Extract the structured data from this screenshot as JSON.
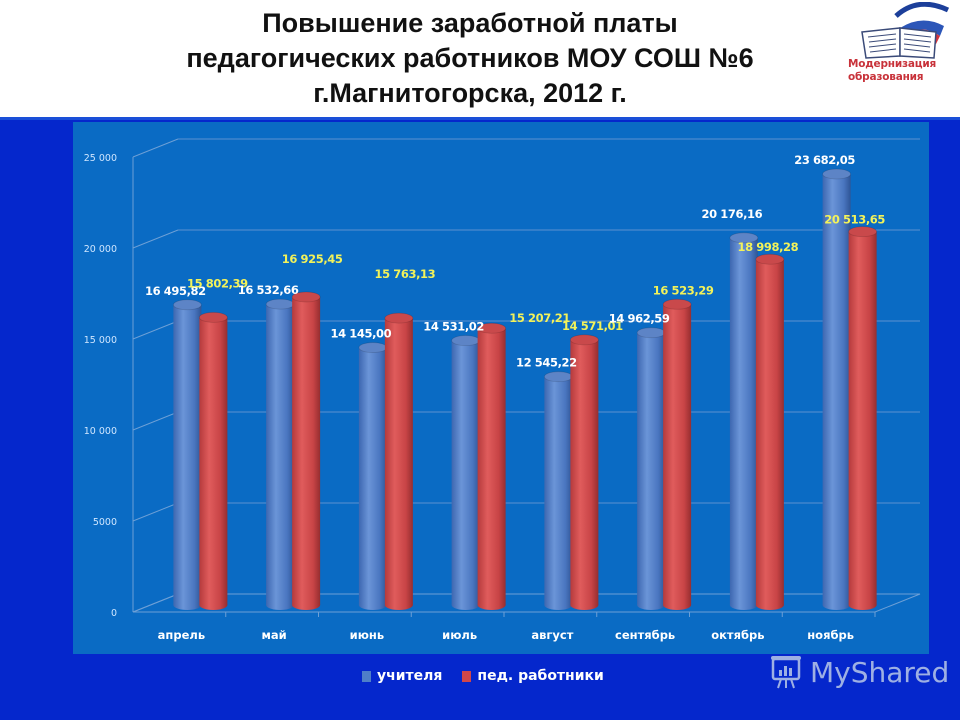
{
  "header": {
    "title_lines": [
      "Повышение заработной платы",
      "педагогических работников МОУ СОШ №6",
      "г.Магнитогорска, 2012 г."
    ],
    "logo_text_lines": [
      "Модернизация",
      "образования"
    ]
  },
  "legend": {
    "items": [
      {
        "label": "учителя",
        "color": "#4f7fc8"
      },
      {
        "label": "пед. работники",
        "color": "#d0474a"
      }
    ]
  },
  "watermark": {
    "text": "MyShared"
  },
  "colors": {
    "slide_background": "#0527cc",
    "plot_panel": "#0a6bc4",
    "series_teachers": "#4f7fc8",
    "series_ped_workers": "#d0474a",
    "label_teachers": "#ffffff",
    "label_ped_workers": "#f2f25a"
  },
  "chart_data": {
    "type": "bar",
    "title": "Повышение заработной платы педагогических работников МОУ СОШ №6 г.Магнитогорска, 2012 г.",
    "xlabel": "",
    "ylabel": "",
    "ylim": [
      0,
      25000
    ],
    "yticks": [
      0,
      5000,
      10000,
      15000,
      20000,
      25000
    ],
    "ytick_labels": [
      "0",
      "5000",
      "10 000",
      "15 000",
      "20 000",
      "25 000"
    ],
    "grid": true,
    "legend_position": "bottom",
    "style": "3d-cylinder",
    "categories": [
      "апрель",
      "май",
      "июнь",
      "июль",
      "август",
      "сентябрь",
      "октябрь",
      "ноябрь"
    ],
    "series": [
      {
        "name": "учителя",
        "values": [
          16495.82,
          16532.66,
          14145.0,
          14531.02,
          12545.22,
          14962.59,
          20176.16,
          23682.05
        ],
        "labels": [
          "16 495,82",
          "16 532,66",
          "14 145,00",
          "14 531,02",
          "12 545,22",
          "14 962,59",
          "20 176,16",
          "23 682,05"
        ]
      },
      {
        "name": "пед. работники",
        "values": [
          15802.39,
          16925.45,
          15763.13,
          15207.21,
          14571.01,
          16523.29,
          18998.28,
          20513.65
        ],
        "labels": [
          "15 802,39",
          "16 925,45",
          "15 763,13",
          "15 207,21",
          "14 571,01",
          "16 523,29",
          "18 998,28",
          "20 513,65"
        ]
      }
    ]
  }
}
